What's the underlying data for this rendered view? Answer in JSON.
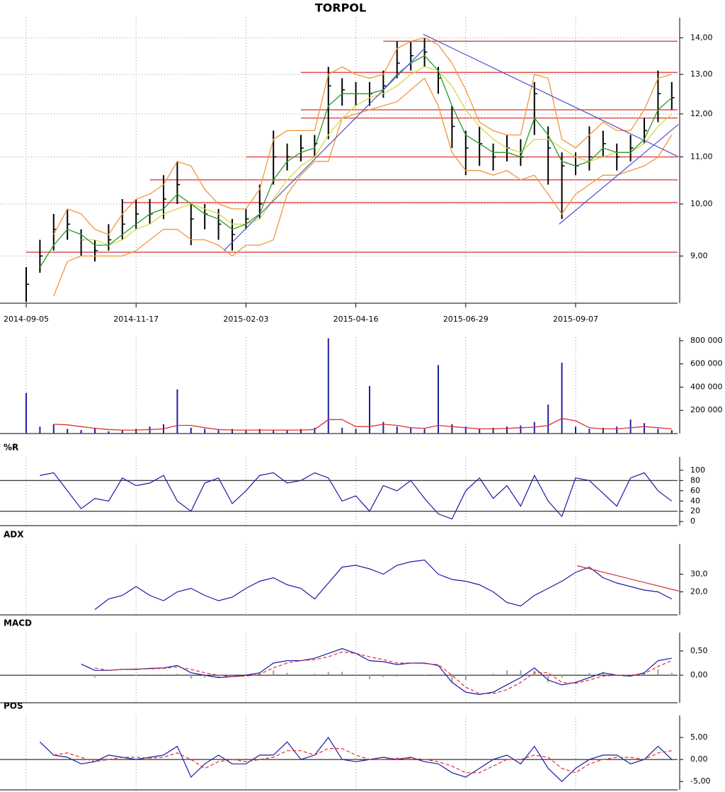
{
  "chart_data": [
    {
      "type": "hlc",
      "title": "TORPOL",
      "log_scale": true,
      "grid": true,
      "color": "#000000",
      "categories": [
        "2014-09-05",
        null,
        null,
        null,
        null,
        null,
        null,
        null,
        "2014-11-17",
        null,
        null,
        null,
        null,
        null,
        null,
        null,
        "2015-02-03",
        null,
        null,
        null,
        null,
        null,
        null,
        null,
        "2015-04-16",
        null,
        null,
        null,
        null,
        null,
        null,
        null,
        "2015-06-29",
        null,
        null,
        null,
        null,
        null,
        null,
        null,
        "2015-09-07",
        null,
        null,
        null,
        null,
        null,
        null,
        null
      ],
      "high": [
        8.8,
        9.3,
        9.8,
        9.9,
        9.5,
        9.3,
        9.6,
        10.1,
        10.1,
        10.1,
        10.6,
        10.9,
        10.0,
        10.0,
        9.9,
        9.7,
        9.9,
        10.4,
        11.6,
        11.3,
        11.5,
        11.5,
        13.2,
        12.9,
        12.8,
        12.8,
        13.1,
        13.9,
        13.9,
        14.0,
        13.2,
        12.2,
        11.6,
        11.7,
        11.3,
        11.5,
        11.4,
        12.8,
        11.7,
        11.1,
        11.1,
        11.7,
        11.6,
        11.3,
        11.5,
        11.9,
        13.1,
        12.8
      ],
      "low": [
        8.2,
        8.7,
        9.1,
        9.3,
        9.0,
        8.9,
        9.1,
        9.3,
        9.5,
        9.6,
        9.7,
        10.0,
        9.2,
        9.5,
        9.3,
        9.1,
        9.5,
        9.7,
        10.4,
        10.7,
        10.9,
        11.0,
        11.4,
        12.2,
        12.2,
        12.2,
        12.4,
        12.9,
        13.1,
        13.2,
        12.5,
        11.2,
        10.6,
        10.8,
        10.7,
        10.9,
        10.8,
        11.5,
        10.4,
        9.7,
        10.6,
        10.7,
        11.0,
        10.7,
        10.9,
        11.3,
        11.8,
        12.1
      ],
      "close": [
        8.5,
        9.0,
        9.5,
        9.6,
        9.3,
        9.1,
        9.3,
        9.6,
        9.8,
        9.8,
        10.1,
        10.4,
        9.7,
        9.8,
        9.6,
        9.4,
        9.7,
        10.0,
        11.0,
        11.0,
        11.2,
        11.3,
        12.7,
        12.6,
        12.5,
        12.5,
        12.7,
        13.3,
        13.5,
        13.6,
        12.9,
        11.7,
        11.2,
        11.3,
        11.0,
        11.2,
        11.0,
        12.5,
        11.2,
        10.8,
        10.8,
        11.0,
        11.3,
        11.0,
        11.2,
        11.6,
        12.5,
        12.4
      ],
      "lines": [
        {
          "color": "#f0963c",
          "values": [
            null,
            null,
            9.4,
            9.9,
            9.8,
            9.5,
            9.4,
            9.8,
            10.1,
            10.2,
            10.4,
            10.9,
            10.8,
            10.3,
            10.0,
            9.9,
            9.9,
            10.3,
            11.4,
            11.6,
            11.6,
            11.6,
            13.0,
            13.2,
            13.0,
            12.9,
            13.0,
            13.7,
            13.9,
            14.0,
            13.8,
            13.3,
            12.6,
            11.8,
            11.6,
            11.5,
            11.5,
            13.0,
            12.9,
            11.4,
            11.2,
            11.5,
            11.8,
            11.6,
            11.6,
            12.1,
            12.9,
            13.0
          ]
        },
        {
          "color": "#f0963c",
          "values": [
            null,
            null,
            8.3,
            8.9,
            9.0,
            9.0,
            9.0,
            9.0,
            9.1,
            9.3,
            9.5,
            9.5,
            9.3,
            9.3,
            9.2,
            9.0,
            9.2,
            9.2,
            9.3,
            10.2,
            10.6,
            10.9,
            10.9,
            11.9,
            12.0,
            12.1,
            12.2,
            12.3,
            12.6,
            12.9,
            12.2,
            11.1,
            10.7,
            10.7,
            10.6,
            10.7,
            10.5,
            10.6,
            10.2,
            9.8,
            10.2,
            10.4,
            10.6,
            10.6,
            10.7,
            10.8,
            11.0,
            11.5
          ]
        },
        {
          "color": "#d8d84a",
          "values": [
            null,
            null,
            null,
            null,
            9.3,
            9.3,
            9.2,
            9.3,
            9.5,
            9.6,
            9.8,
            9.9,
            10.0,
            9.9,
            9.8,
            9.6,
            9.6,
            9.7,
            10.1,
            10.5,
            10.8,
            11.0,
            11.5,
            11.9,
            12.2,
            12.4,
            12.5,
            12.7,
            13.0,
            13.2,
            13.1,
            12.7,
            12.1,
            11.7,
            11.4,
            11.2,
            11.1,
            11.4,
            11.4,
            11.2,
            11.0,
            10.9,
            11.0,
            11.1,
            11.1,
            11.3,
            11.7,
            12.0
          ]
        },
        {
          "color": "#2a9a2a",
          "values": [
            null,
            8.8,
            9.2,
            9.5,
            9.4,
            9.2,
            9.2,
            9.4,
            9.6,
            9.8,
            9.9,
            10.2,
            10.0,
            9.8,
            9.7,
            9.5,
            9.6,
            9.8,
            10.5,
            10.9,
            11.1,
            11.2,
            12.2,
            12.5,
            12.5,
            12.5,
            12.6,
            13.0,
            13.3,
            13.5,
            13.1,
            12.2,
            11.5,
            11.3,
            11.1,
            11.1,
            11.0,
            11.9,
            11.5,
            10.9,
            10.8,
            10.9,
            11.2,
            11.1,
            11.1,
            11.4,
            12.1,
            12.4
          ]
        }
      ],
      "hline_color": "#e05050",
      "hlines": [
        {
          "value": 9.07,
          "start": 0
        },
        {
          "value": 10.03,
          "start": 7
        },
        {
          "value": 10.5,
          "start": 9
        },
        {
          "value": 11.0,
          "start": 16
        },
        {
          "value": 11.9,
          "start": 20
        },
        {
          "value": 12.1,
          "start": 20
        },
        {
          "value": 13.05,
          "start": 20
        },
        {
          "value": 13.9,
          "start": 26
        }
      ],
      "trend_color": "#5050c8",
      "trendlines": [
        {
          "x": [
            14.4,
            29.0
          ],
          "y": [
            9.1,
            13.7
          ]
        },
        {
          "x": [
            28.9,
            47.5
          ],
          "y": [
            14.1,
            11.0
          ]
        },
        {
          "x": [
            38.8,
            47.5
          ],
          "y": [
            9.6,
            11.75
          ]
        }
      ],
      "ylim": [
        8.18,
        14.58
      ],
      "yticks": [
        {
          "value": 9,
          "label": "9,00"
        },
        {
          "value": 10,
          "label": "10,00"
        },
        {
          "value": 11,
          "label": "11,00"
        },
        {
          "value": 12,
          "label": "12,00"
        },
        {
          "value": 13,
          "label": "13,00"
        },
        {
          "value": 14,
          "label": "14,00"
        }
      ]
    },
    {
      "type": "bar",
      "color": "#2020a0",
      "values": [
        350000,
        60000,
        80000,
        40000,
        30000,
        50000,
        20000,
        30000,
        40000,
        60000,
        80000,
        380000,
        50000,
        40000,
        30000,
        40000,
        30000,
        40000,
        30000,
        30000,
        40000,
        50000,
        820000,
        50000,
        40000,
        410000,
        100000,
        60000,
        50000,
        40000,
        590000,
        80000,
        60000,
        40000,
        50000,
        60000,
        70000,
        100000,
        250000,
        610000,
        60000,
        40000,
        50000,
        60000,
        120000,
        90000,
        40000,
        30000
      ],
      "lines": [
        {
          "color": "#e03030",
          "values": [
            null,
            null,
            80000,
            75000,
            60000,
            45000,
            35000,
            30000,
            30000,
            35000,
            40000,
            70000,
            70000,
            50000,
            35000,
            30000,
            30000,
            30000,
            30000,
            30000,
            30000,
            35000,
            120000,
            120000,
            60000,
            60000,
            80000,
            70000,
            50000,
            45000,
            70000,
            60000,
            50000,
            40000,
            40000,
            45000,
            50000,
            55000,
            70000,
            130000,
            110000,
            50000,
            40000,
            40000,
            50000,
            60000,
            50000,
            40000
          ]
        }
      ],
      "ylim": [
        0,
        830000
      ],
      "yticks": [
        {
          "value": 200000,
          "label": "200 000"
        },
        {
          "value": 400000,
          "label": "400 000"
        },
        {
          "value": 600000,
          "label": "600 000"
        },
        {
          "value": 800000,
          "label": "800 000"
        }
      ]
    },
    {
      "type": "line",
      "title": "%R",
      "series": [
        {
          "color": "#1a1aa8",
          "values": [
            null,
            90,
            95,
            60,
            25,
            45,
            40,
            85,
            70,
            75,
            90,
            40,
            20,
            75,
            85,
            35,
            60,
            90,
            95,
            75,
            80,
            95,
            85,
            40,
            50,
            20,
            70,
            60,
            80,
            45,
            15,
            5,
            60,
            85,
            45,
            70,
            30,
            90,
            40,
            10,
            85,
            80,
            55,
            30,
            85,
            95,
            60,
            40
          ]
        }
      ],
      "hline_color": "#000000",
      "hlines": [
        {
          "value": 80
        },
        {
          "value": 20
        }
      ],
      "ylim": [
        -8,
        126
      ],
      "yticks": [
        0,
        20,
        40,
        60,
        80,
        100
      ]
    },
    {
      "type": "line",
      "title": "ADX",
      "series": [
        {
          "color": "#1a1aa8",
          "values": [
            null,
            null,
            null,
            null,
            null,
            10,
            16,
            18,
            23,
            18,
            15,
            20,
            22,
            18,
            15,
            17,
            22,
            26,
            28,
            24,
            22,
            16,
            25,
            34,
            35,
            33,
            30,
            35,
            37,
            38,
            30,
            27,
            26,
            24,
            20,
            14,
            12,
            18,
            22,
            26,
            31,
            34,
            28,
            25,
            23,
            21,
            20,
            16
          ]
        }
      ],
      "trend_color": "#d03030",
      "trendlines": [
        {
          "x": [
            40.1,
            47.5
          ],
          "y": [
            34.8,
            20.5
          ]
        }
      ],
      "ylim": [
        7,
        47
      ],
      "yticks": [
        {
          "value": 20,
          "label": "20,0"
        },
        {
          "value": 30,
          "label": "30,0"
        }
      ]
    },
    {
      "type": "line",
      "title": "MACD",
      "series": [
        {
          "color": "#1a1aa8",
          "values": [
            null,
            null,
            null,
            null,
            0.23,
            0.1,
            0.1,
            0.12,
            0.12,
            0.14,
            0.15,
            0.2,
            0.05,
            0.0,
            -0.05,
            -0.03,
            0.0,
            0.05,
            0.25,
            0.3,
            0.3,
            0.35,
            0.45,
            0.55,
            0.45,
            0.3,
            0.28,
            0.22,
            0.25,
            0.25,
            0.2,
            -0.15,
            -0.35,
            -0.4,
            -0.35,
            -0.2,
            -0.05,
            0.15,
            -0.1,
            -0.2,
            -0.15,
            -0.05,
            0.05,
            0.0,
            -0.02,
            0.05,
            0.3,
            0.35
          ]
        },
        {
          "color": "#e03030",
          "dash": true,
          "values": [
            null,
            null,
            null,
            null,
            null,
            0.15,
            0.1,
            0.12,
            0.13,
            0.13,
            0.14,
            0.17,
            0.12,
            0.05,
            0.0,
            -0.03,
            -0.02,
            0.02,
            0.15,
            0.25,
            0.3,
            0.32,
            0.38,
            0.48,
            0.45,
            0.38,
            0.32,
            0.25,
            0.25,
            0.24,
            0.22,
            0.0,
            -0.25,
            -0.38,
            -0.38,
            -0.3,
            -0.15,
            0.05,
            0.05,
            -0.15,
            -0.17,
            -0.1,
            -0.02,
            0.0,
            0.0,
            0.03,
            0.18,
            0.3
          ]
        }
      ],
      "bars_color": "#9aa0a0",
      "bars": [
        null,
        null,
        null,
        null,
        null,
        -0.05,
        0.0,
        0.0,
        -0.01,
        0.01,
        0.01,
        0.03,
        -0.07,
        -0.05,
        -0.05,
        0.0,
        0.02,
        0.03,
        0.1,
        0.05,
        0.0,
        0.03,
        0.07,
        0.07,
        0.0,
        -0.08,
        -0.04,
        -0.03,
        0.0,
        0.01,
        -0.02,
        -0.15,
        -0.1,
        -0.02,
        0.03,
        0.1,
        0.1,
        0.1,
        -0.15,
        -0.05,
        0.02,
        0.05,
        0.07,
        0.0,
        -0.02,
        0.02,
        0.12,
        0.05
      ],
      "hline_color": "#000000",
      "hlines": [
        {
          "value": 0
        }
      ],
      "ylim": [
        -0.57,
        0.88
      ],
      "yticks": [
        {
          "value": 0,
          "label": "0,00"
        },
        {
          "value": 0.5,
          "label": "0,50"
        }
      ]
    },
    {
      "type": "line",
      "title": "POS",
      "series": [
        {
          "color": "#1a1aa8",
          "values": [
            null,
            4,
            1,
            0.5,
            -1,
            -0.5,
            1,
            0.5,
            0,
            0.5,
            1,
            3,
            -4,
            -1,
            1,
            -1,
            -1,
            1,
            1,
            4,
            0,
            1,
            5,
            0,
            -0.5,
            0,
            0.5,
            0,
            0.5,
            -0.5,
            -1,
            -3,
            -4,
            -2,
            0,
            1,
            -1,
            3,
            -2,
            -5,
            -2,
            0,
            1,
            1,
            -1,
            0,
            3,
            0
          ]
        },
        {
          "color": "#e03030",
          "dash": true,
          "values": [
            null,
            null,
            1,
            1.5,
            0.5,
            -0.5,
            0,
            0.5,
            0.5,
            0.3,
            0.5,
            1.5,
            0,
            -2,
            -0.5,
            0,
            -0.5,
            0,
            0.5,
            2,
            2,
            1,
            2.5,
            2.5,
            1,
            0,
            0,
            0.3,
            0.3,
            0,
            -0.5,
            -1.5,
            -3,
            -3,
            -1.5,
            0,
            0,
            1,
            0.5,
            -2,
            -3,
            -1,
            0,
            0.5,
            0.5,
            0,
            1.5,
            2
          ]
        }
      ],
      "hline_color": "#000000",
      "hlines": [
        {
          "value": 0
        }
      ],
      "ylim": [
        -6.9,
        10
      ],
      "yticks": [
        {
          "value": -5,
          "label": "-5,00"
        },
        {
          "value": 0,
          "label": "0,00"
        },
        {
          "value": 5,
          "label": "5,00"
        }
      ]
    }
  ]
}
